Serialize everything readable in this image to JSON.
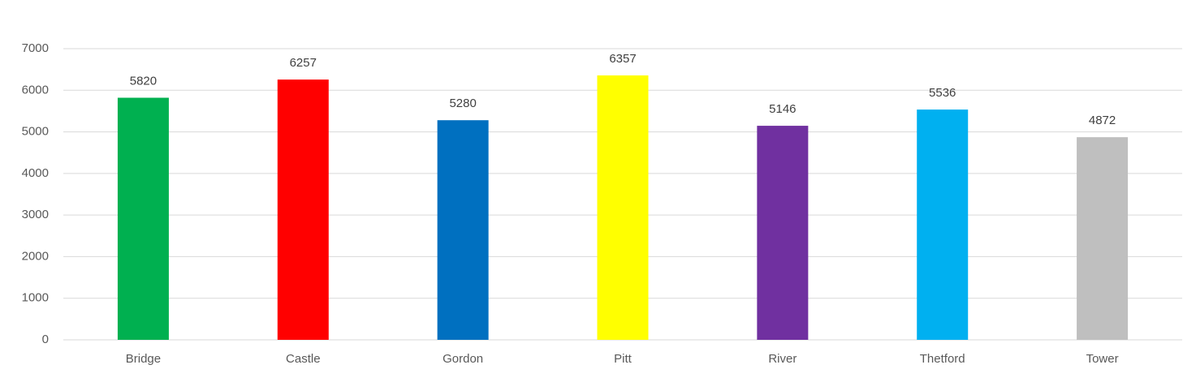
{
  "chart_data": {
    "type": "bar",
    "categories": [
      "Bridge",
      "Castle",
      "Gordon",
      "Pitt",
      "River",
      "Thetford",
      "Tower"
    ],
    "values": [
      5820,
      6257,
      5280,
      6357,
      5146,
      5536,
      4872
    ],
    "colors": [
      "#00b050",
      "#ff0000",
      "#0070c0",
      "#ffff00",
      "#7030a0",
      "#00b0f0",
      "#bfbfbf"
    ],
    "ylim": [
      0,
      7000
    ],
    "yticks": [
      0,
      1000,
      2000,
      3000,
      4000,
      5000,
      6000,
      7000
    ],
    "grid": true
  }
}
